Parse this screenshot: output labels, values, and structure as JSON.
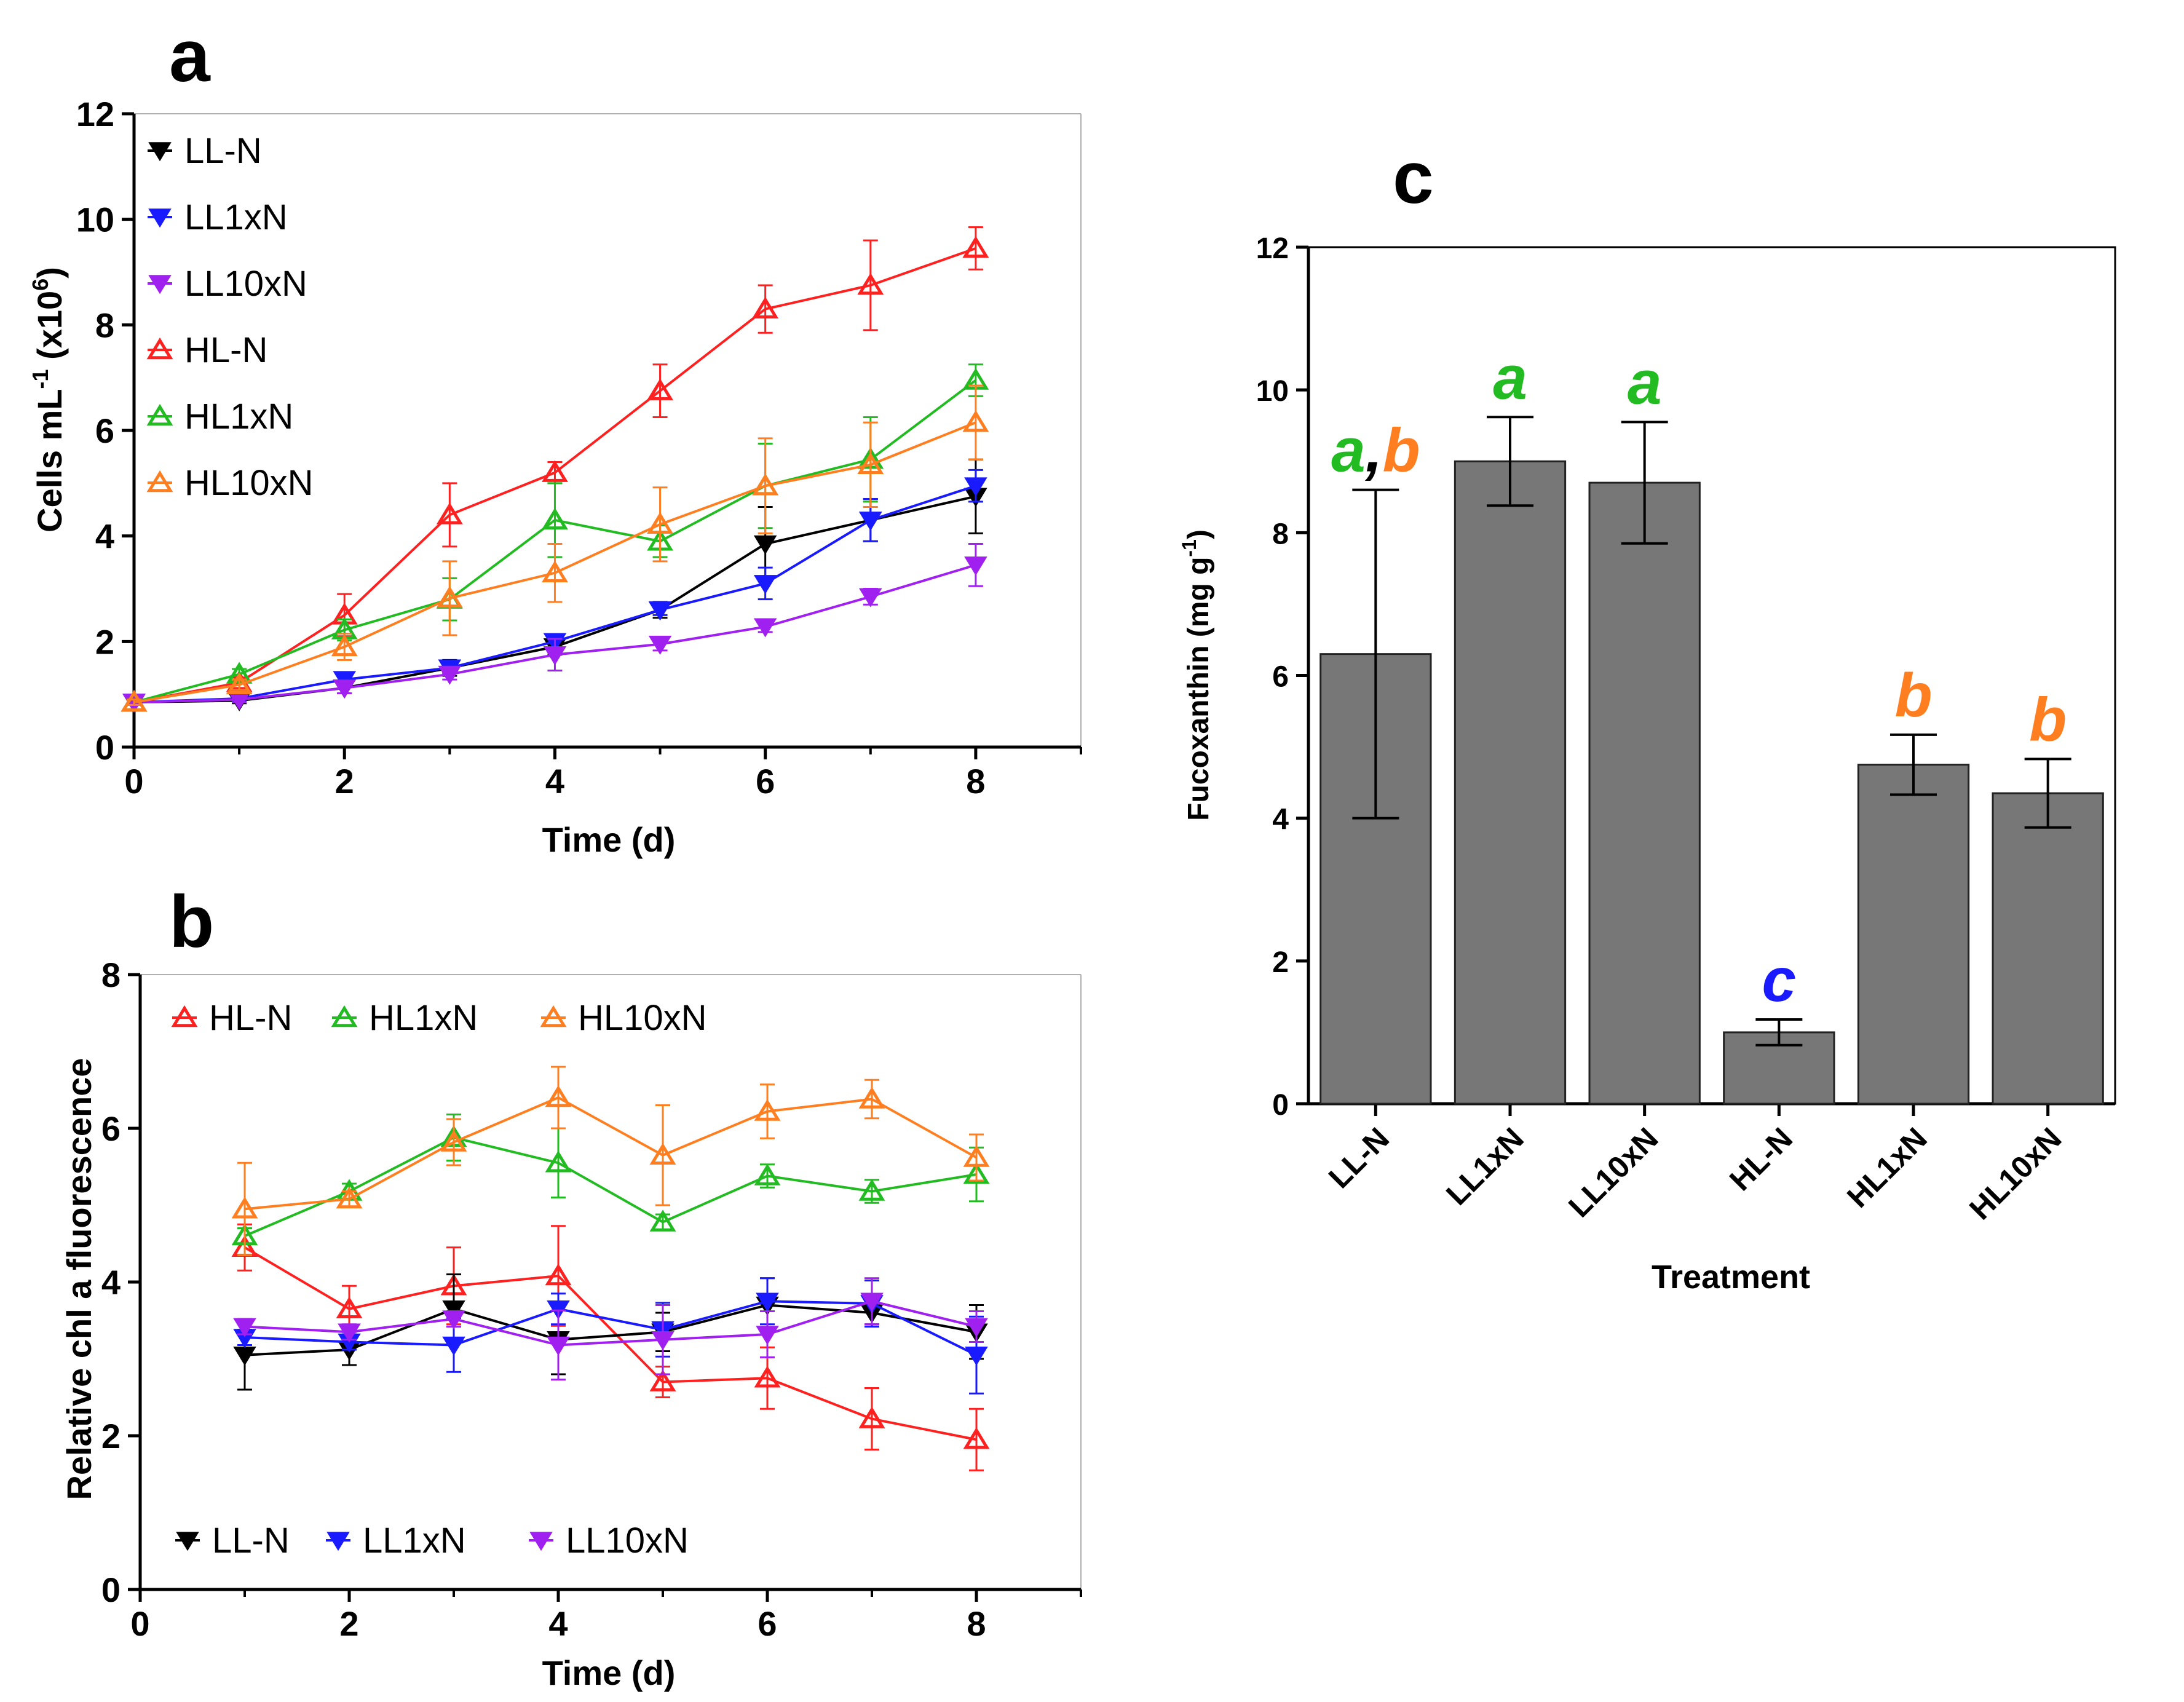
{
  "chart_data": [
    {
      "panel": "a",
      "type": "line",
      "xlabel": "Time (d)",
      "ylabel": "Cells mL",
      "ylabel_sup1": "-1",
      "ylabel_mid": " (x10",
      "ylabel_sup2": "6",
      "ylabel_end": ")",
      "xlim": [
        0,
        9
      ],
      "ylim": [
        0,
        12
      ],
      "xticks": [
        0,
        2,
        4,
        6,
        8
      ],
      "yticks": [
        0,
        2,
        4,
        6,
        8,
        10,
        12
      ],
      "legend_position": "top-left",
      "series": [
        {
          "name": "LL-N",
          "color": "#000000",
          "marker": "triangle-down-filled",
          "x": [
            0,
            1,
            2,
            3,
            4,
            5,
            6,
            7,
            8
          ],
          "y": [
            0.85,
            0.88,
            1.12,
            1.5,
            1.9,
            2.6,
            3.85,
            4.3,
            4.75
          ],
          "err": [
            0.05,
            0.05,
            0.1,
            0.15,
            0.15,
            0.15,
            0.7,
            0.4,
            0.7
          ]
        },
        {
          "name": "LL1xN",
          "color": "#1a1aff",
          "marker": "triangle-down-filled",
          "x": [
            0,
            1,
            2,
            3,
            4,
            5,
            6,
            7,
            8
          ],
          "y": [
            0.85,
            0.92,
            1.28,
            1.5,
            2.0,
            2.6,
            3.1,
            4.3,
            4.95
          ],
          "err": [
            0.05,
            0.05,
            0.1,
            0.1,
            0.12,
            0.1,
            0.3,
            0.4,
            0.3
          ]
        },
        {
          "name": "LL10xN",
          "color": "#a020f0",
          "marker": "triangle-down-filled",
          "x": [
            0,
            1,
            2,
            3,
            4,
            5,
            6,
            7,
            8
          ],
          "y": [
            0.85,
            0.9,
            1.12,
            1.38,
            1.75,
            1.95,
            2.28,
            2.85,
            3.45
          ],
          "err": [
            0.05,
            0.05,
            0.1,
            0.1,
            0.3,
            0.12,
            0.1,
            0.15,
            0.4
          ]
        },
        {
          "name": "HL-N",
          "color": "#ff2020",
          "marker": "triangle-up-open",
          "x": [
            0,
            1,
            2,
            3,
            4,
            5,
            6,
            7,
            8
          ],
          "y": [
            0.85,
            1.22,
            2.5,
            4.4,
            5.2,
            6.75,
            8.3,
            8.75,
            9.45
          ],
          "err": [
            0.05,
            0.1,
            0.4,
            0.6,
            0.2,
            0.5,
            0.45,
            0.85,
            0.4
          ]
        },
        {
          "name": "HL1xN",
          "color": "#22bb22",
          "marker": "triangle-up-open",
          "x": [
            0,
            1,
            2,
            3,
            4,
            5,
            6,
            7,
            8
          ],
          "y": [
            0.85,
            1.38,
            2.22,
            2.8,
            4.3,
            3.9,
            4.95,
            5.45,
            6.95
          ],
          "err": [
            0.05,
            0.1,
            0.2,
            0.4,
            0.7,
            0.3,
            0.8,
            0.8,
            0.3
          ]
        },
        {
          "name": "HL10xN",
          "color": "#ff7f20",
          "marker": "triangle-up-open",
          "x": [
            0,
            1,
            2,
            3,
            4,
            5,
            6,
            7,
            8
          ],
          "y": [
            0.85,
            1.18,
            1.9,
            2.82,
            3.3,
            4.22,
            4.95,
            5.35,
            6.15
          ],
          "err": [
            0.05,
            0.1,
            0.25,
            0.7,
            0.55,
            0.7,
            0.9,
            0.8,
            0.7
          ]
        }
      ]
    },
    {
      "panel": "b",
      "type": "line",
      "xlabel": "Time (d)",
      "ylabel": "Relative chl a fluorescence",
      "xlim": [
        0,
        9
      ],
      "ylim": [
        0,
        8
      ],
      "xticks": [
        0,
        2,
        4,
        6,
        8
      ],
      "yticks": [
        0,
        2,
        4,
        6,
        8
      ],
      "legend_position": "top and bottom rows",
      "series": [
        {
          "name": "HL-N",
          "color": "#ff2020",
          "marker": "triangle-up-open",
          "x": [
            1,
            2,
            3,
            4,
            5,
            6,
            7,
            8
          ],
          "y": [
            4.45,
            3.65,
            3.95,
            4.08,
            2.7,
            2.75,
            2.22,
            1.95
          ],
          "err": [
            0.3,
            0.3,
            0.5,
            0.65,
            0.2,
            0.4,
            0.4,
            0.4
          ]
        },
        {
          "name": "HL1xN",
          "color": "#22bb22",
          "marker": "triangle-up-open",
          "x": [
            1,
            2,
            3,
            4,
            5,
            6,
            7,
            8
          ],
          "y": [
            4.6,
            5.18,
            5.88,
            5.55,
            4.78,
            5.38,
            5.18,
            5.4
          ],
          "err": [
            0.1,
            0.1,
            0.3,
            0.45,
            0.1,
            0.15,
            0.15,
            0.35
          ]
        },
        {
          "name": "HL10xN",
          "color": "#ff7f20",
          "marker": "triangle-up-open",
          "x": [
            1,
            2,
            3,
            4,
            5,
            6,
            7,
            8
          ],
          "y": [
            4.95,
            5.08,
            5.82,
            6.4,
            5.65,
            6.22,
            6.38,
            5.62
          ],
          "err": [
            0.6,
            0.1,
            0.3,
            0.4,
            0.65,
            0.35,
            0.25,
            0.3
          ]
        },
        {
          "name": "LL-N",
          "color": "#000000",
          "marker": "triangle-down-filled",
          "x": [
            1,
            2,
            3,
            4,
            5,
            6,
            7,
            8
          ],
          "y": [
            3.05,
            3.12,
            3.65,
            3.25,
            3.35,
            3.7,
            3.6,
            3.35
          ],
          "err": [
            0.45,
            0.2,
            0.45,
            0.45,
            0.25,
            0.35,
            0.15,
            0.35
          ]
        },
        {
          "name": "LL1xN",
          "color": "#1a1aff",
          "marker": "triangle-down-filled",
          "x": [
            1,
            2,
            3,
            4,
            5,
            6,
            7,
            8
          ],
          "y": [
            3.28,
            3.22,
            3.18,
            3.65,
            3.38,
            3.75,
            3.72,
            3.05
          ],
          "err": [
            0.1,
            0.1,
            0.35,
            0.2,
            0.35,
            0.3,
            0.3,
            0.5
          ]
        },
        {
          "name": "LL10xN",
          "color": "#a020f0",
          "marker": "triangle-down-filled",
          "x": [
            1,
            2,
            3,
            4,
            5,
            6,
            7,
            8
          ],
          "y": [
            3.42,
            3.35,
            3.52,
            3.18,
            3.25,
            3.32,
            3.75,
            3.42
          ],
          "err": [
            0.1,
            0.1,
            0.1,
            0.45,
            0.45,
            0.3,
            0.3,
            0.2
          ]
        }
      ]
    },
    {
      "panel": "c",
      "type": "bar",
      "xlabel": "Treatment",
      "ylabel": "Fucoxanthin (mg g",
      "ylabel_sup": "-1",
      "ylabel_end": ")",
      "ylim": [
        0,
        12
      ],
      "yticks": [
        0,
        2,
        4,
        6,
        8,
        10,
        12
      ],
      "bar_color": "#777777",
      "categories": [
        "LL-N",
        "LL1xN",
        "LL10xN",
        "HL-N",
        "HL1xN",
        "HL10xN"
      ],
      "values": [
        6.3,
        9.0,
        8.7,
        1.0,
        4.75,
        4.35
      ],
      "err": [
        2.3,
        0.62,
        0.85,
        0.18,
        0.42,
        0.48
      ],
      "significance": [
        {
          "parts": [
            {
              "text": "a",
              "color": "#22bb22"
            },
            {
              "text": ",",
              "color": "#000000"
            },
            {
              "text": "b",
              "color": "#ff7f20"
            }
          ]
        },
        {
          "parts": [
            {
              "text": "a",
              "color": "#22bb22"
            }
          ]
        },
        {
          "parts": [
            {
              "text": "a",
              "color": "#22bb22"
            }
          ]
        },
        {
          "parts": [
            {
              "text": "c",
              "color": "#1a1aff"
            }
          ]
        },
        {
          "parts": [
            {
              "text": "b",
              "color": "#ff7f20"
            }
          ]
        },
        {
          "parts": [
            {
              "text": "b",
              "color": "#ff7f20"
            }
          ]
        }
      ]
    }
  ],
  "panel_labels": {
    "a": "a",
    "b": "b",
    "c": "c"
  }
}
